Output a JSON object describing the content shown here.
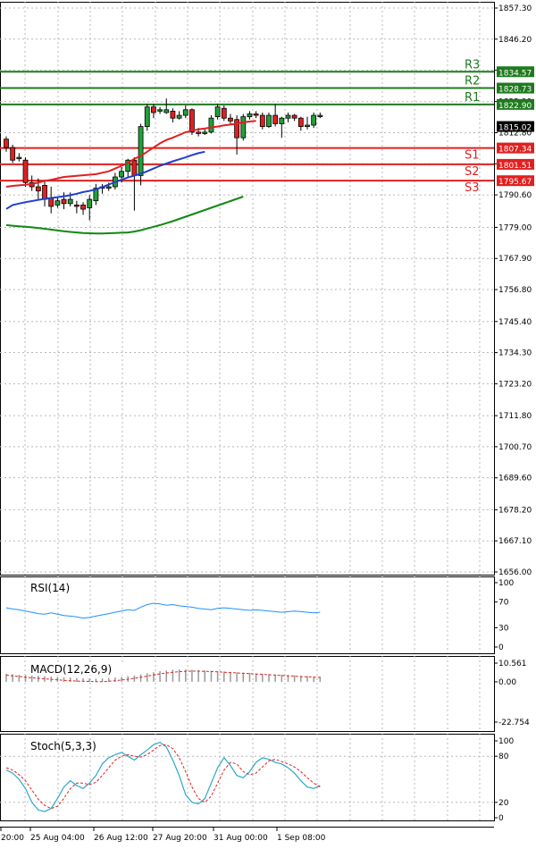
{
  "chart_data": {
    "type": "candlestick",
    "x_labels": [
      "20:00",
      "25 Aug 04:00",
      "26 Aug 12:00",
      "27 Aug 20:00",
      "31 Aug 00:00",
      "1 Sep 08:00"
    ],
    "main": {
      "y_range": [
        1656.0,
        1857.3
      ],
      "y_ticks": [
        "1857.30",
        "1846.20",
        "1835.10",
        "1823.90",
        "1812.80",
        "1801.70",
        "1790.60",
        "1779.00",
        "1767.90",
        "1756.80",
        "1745.40",
        "1734.30",
        "1723.20",
        "1711.80",
        "1700.70",
        "1689.60",
        "1678.20",
        "1667.10",
        "1656.00"
      ],
      "current_price": "1815.02",
      "levels": [
        {
          "name": "R3",
          "value": 1834.57,
          "label": "1834.57",
          "color": "#1e7a1e"
        },
        {
          "name": "R2",
          "value": 1828.73,
          "label": "1828.73",
          "color": "#1e7a1e"
        },
        {
          "name": "R1",
          "value": 1822.9,
          "label": "1822.90",
          "color": "#1e7a1e"
        },
        {
          "name": "S1",
          "value": 1807.34,
          "label": "1807.34",
          "color": "#e02020"
        },
        {
          "name": "S2",
          "value": 1801.51,
          "label": "1801.51",
          "color": "#e02020"
        },
        {
          "name": "S3",
          "value": 1795.67,
          "label": "1795.67",
          "color": "#e02020"
        }
      ],
      "candles": [
        [
          1810.5,
          1807.5,
          1811.5,
          1806.0
        ],
        [
          1807.5,
          1803.0,
          1808.5,
          1802.0
        ],
        [
          1803.5,
          1804.0,
          1805.5,
          1802.5
        ],
        [
          1803.0,
          1795.0,
          1804.0,
          1793.5
        ],
        [
          1795.0,
          1793.5,
          1797.5,
          1792.0
        ],
        [
          1793.5,
          1792.0,
          1796.5,
          1789.0
        ],
        [
          1794.0,
          1789.0,
          1795.5,
          1786.5
        ],
        [
          1789.5,
          1786.5,
          1793.5,
          1784.0
        ],
        [
          1787.0,
          1788.5,
          1790.0,
          1786.0
        ],
        [
          1789.0,
          1787.5,
          1791.5,
          1785.5
        ],
        [
          1787.5,
          1789.0,
          1791.5,
          1786.5
        ],
        [
          1787.0,
          1786.5,
          1788.5,
          1784.0
        ],
        [
          1787.0,
          1785.5,
          1788.0,
          1783.5
        ],
        [
          1786.0,
          1789.0,
          1790.5,
          1781.5
        ],
        [
          1788.5,
          1793.0,
          1794.5,
          1787.0
        ],
        [
          1793.0,
          1793.5,
          1794.5,
          1791.0
        ],
        [
          1793.0,
          1793.5,
          1795.0,
          1792.0
        ],
        [
          1793.5,
          1797.0,
          1798.5,
          1792.5
        ],
        [
          1797.0,
          1799.0,
          1800.5,
          1795.0
        ],
        [
          1799.0,
          1803.0,
          1803.5,
          1797.0
        ],
        [
          1803.0,
          1797.5,
          1804.0,
          1785.0
        ],
        [
          1797.5,
          1815.0,
          1816.0,
          1794.0
        ],
        [
          1815.0,
          1822.0,
          1823.0,
          1813.5
        ],
        [
          1822.0,
          1820.0,
          1823.0,
          1818.0
        ],
        [
          1820.5,
          1821.0,
          1822.0,
          1819.5
        ],
        [
          1820.0,
          1821.0,
          1825.0,
          1819.5
        ],
        [
          1820.5,
          1818.0,
          1821.5,
          1816.5
        ],
        [
          1818.0,
          1819.0,
          1820.5,
          1817.5
        ],
        [
          1819.0,
          1821.0,
          1822.5,
          1818.0
        ],
        [
          1821.0,
          1813.0,
          1821.5,
          1812.0
        ],
        [
          1813.0,
          1812.5,
          1814.5,
          1811.5
        ],
        [
          1812.5,
          1813.0,
          1814.0,
          1812.0
        ],
        [
          1813.0,
          1818.0,
          1819.0,
          1812.5
        ],
        [
          1818.5,
          1822.0,
          1823.0,
          1817.5
        ],
        [
          1821.5,
          1818.0,
          1822.5,
          1817.0
        ],
        [
          1818.0,
          1817.0,
          1819.5,
          1816.0
        ],
        [
          1817.5,
          1811.0,
          1819.0,
          1805.0
        ],
        [
          1811.0,
          1818.5,
          1819.5,
          1810.0
        ],
        [
          1818.5,
          1819.5,
          1820.5,
          1817.5
        ],
        [
          1819.5,
          1819.0,
          1820.5,
          1818.0
        ],
        [
          1819.0,
          1815.0,
          1820.0,
          1814.0
        ],
        [
          1815.0,
          1819.0,
          1820.0,
          1814.5
        ],
        [
          1819.0,
          1816.0,
          1823.0,
          1815.0
        ],
        [
          1816.0,
          1818.0,
          1818.5,
          1811.0
        ],
        [
          1818.0,
          1819.0,
          1820.0,
          1816.5
        ],
        [
          1819.0,
          1818.0,
          1819.5,
          1817.0
        ],
        [
          1818.0,
          1815.0,
          1818.5,
          1813.5
        ],
        [
          1815.0,
          1815.5,
          1818.5,
          1814.0
        ],
        [
          1815.5,
          1819.0,
          1820.0,
          1814.5
        ],
        [
          1818.5,
          1819.0,
          1820.0,
          1818.0
        ]
      ],
      "ma_red": [
        1793.5,
        1793.8,
        1794.0,
        1794.2,
        1794.5,
        1795.0,
        1795.6,
        1796.0,
        1796.5,
        1797.0,
        1797.2,
        1797.4,
        1797.6,
        1797.8,
        1798.0,
        1798.5,
        1799.0,
        1800.0,
        1801.0,
        1802.0,
        1803.5,
        1804.5,
        1806.0,
        1807.5,
        1809.0,
        1810.2,
        1811.0,
        1812.0,
        1813.0,
        1813.5,
        1814.0,
        1814.3,
        1814.7,
        1815.0,
        1815.4,
        1815.7,
        1816.0,
        1816.5,
        1816.8,
        1817.0
      ],
      "ma_blue": [
        1785.6,
        1787.0,
        1787.5,
        1788.0,
        1788.4,
        1788.8,
        1789.2,
        1789.5,
        1789.8,
        1790.1,
        1790.5,
        1791.0,
        1791.6,
        1792.0,
        1792.6,
        1793.4,
        1794.3,
        1795.2,
        1796.0,
        1796.8,
        1797.5,
        1798.2,
        1799.0,
        1800.0,
        1801.0,
        1801.8,
        1802.6,
        1803.3,
        1804.0,
        1804.8,
        1805.5,
        1806.0
      ],
      "ma_green": [
        1779.8,
        1779.6,
        1779.4,
        1779.2,
        1779.0,
        1778.8,
        1778.5,
        1778.2,
        1777.9,
        1777.6,
        1777.4,
        1777.2,
        1777.0,
        1776.9,
        1776.8,
        1776.8,
        1776.9,
        1777.0,
        1777.1,
        1777.2,
        1777.5,
        1778.0,
        1778.6,
        1779.2,
        1779.8,
        1780.5,
        1781.2,
        1782.0,
        1782.8,
        1783.6,
        1784.4,
        1785.2,
        1786.0,
        1786.8,
        1787.6,
        1788.4,
        1789.2,
        1790.0
      ]
    },
    "rsi": {
      "label": "RSI(14)",
      "y_range": [
        0,
        100
      ],
      "y_ticks": [
        "100",
        "70",
        "30",
        "0"
      ],
      "values": [
        61,
        59,
        58,
        56,
        54,
        52,
        51,
        53,
        51,
        49,
        48,
        47,
        45,
        46,
        48,
        50,
        52,
        54,
        56,
        58,
        57,
        62,
        66,
        68,
        67,
        65,
        66,
        64,
        63,
        62,
        60,
        59,
        58,
        60,
        61,
        60,
        59,
        58,
        57,
        58,
        57,
        56,
        55,
        54,
        55,
        56,
        55,
        54,
        53,
        54
      ]
    },
    "macd": {
      "label": "MACD(12,26,9)",
      "y_range": [
        -22.754,
        10.561
      ],
      "y_ticks": [
        "10.561",
        "0.00",
        "-22.754"
      ],
      "histogram": [
        4.5,
        4.3,
        4.0,
        3.8,
        3.6,
        3.4,
        3.2,
        3.0,
        2.8,
        2.6,
        2.4,
        2.2,
        2.0,
        1.9,
        1.8,
        1.9,
        2.1,
        2.4,
        2.8,
        3.2,
        3.6,
        4.2,
        4.8,
        5.4,
        6.0,
        6.4,
        6.8,
        7.0,
        7.0,
        6.8,
        6.6,
        6.4,
        6.2,
        6.0,
        5.8,
        5.6,
        5.4,
        5.2,
        5.0,
        4.8,
        4.6,
        4.4,
        4.2,
        4.0,
        3.8,
        3.6,
        3.4,
        3.2,
        3.0,
        2.9
      ],
      "signal": [
        3.8,
        3.4,
        3.0,
        2.6,
        2.3,
        2.0,
        1.7,
        1.4,
        1.1,
        0.8,
        0.6,
        0.4,
        0.3,
        0.2,
        0.1,
        0.1,
        0.3,
        0.6,
        1.0,
        1.5,
        2.0,
        2.6,
        3.2,
        3.9,
        4.5,
        5.0,
        5.4,
        5.7,
        5.9,
        6.0,
        6.0,
        5.9,
        5.8,
        5.6,
        5.4,
        5.2,
        5.0,
        4.8,
        4.6,
        4.4,
        4.2,
        4.0,
        3.8,
        3.6,
        3.4,
        3.2,
        3.0,
        2.8,
        2.6,
        2.5
      ]
    },
    "stoch": {
      "label": "Stoch(5,3,3)",
      "y_range": [
        0,
        100
      ],
      "y_ticks": [
        "100",
        "80",
        "20",
        "0"
      ],
      "k": [
        62,
        58,
        50,
        38,
        20,
        10,
        8,
        12,
        25,
        40,
        48,
        42,
        38,
        45,
        55,
        70,
        78,
        82,
        85,
        80,
        75,
        82,
        88,
        95,
        98,
        92,
        75,
        55,
        30,
        20,
        18,
        25,
        45,
        65,
        78,
        68,
        55,
        52,
        60,
        72,
        78,
        76,
        72,
        70,
        65,
        58,
        48,
        40,
        38,
        42
      ],
      "d": [
        65,
        62,
        56,
        48,
        36,
        24,
        16,
        12,
        15,
        25,
        38,
        45,
        45,
        43,
        46,
        55,
        65,
        75,
        80,
        82,
        80,
        79,
        82,
        88,
        94,
        95,
        90,
        78,
        60,
        40,
        25,
        20,
        28,
        45,
        62,
        72,
        70,
        60,
        56,
        58,
        66,
        74,
        76,
        73,
        70,
        66,
        60,
        52,
        45,
        40
      ]
    }
  }
}
